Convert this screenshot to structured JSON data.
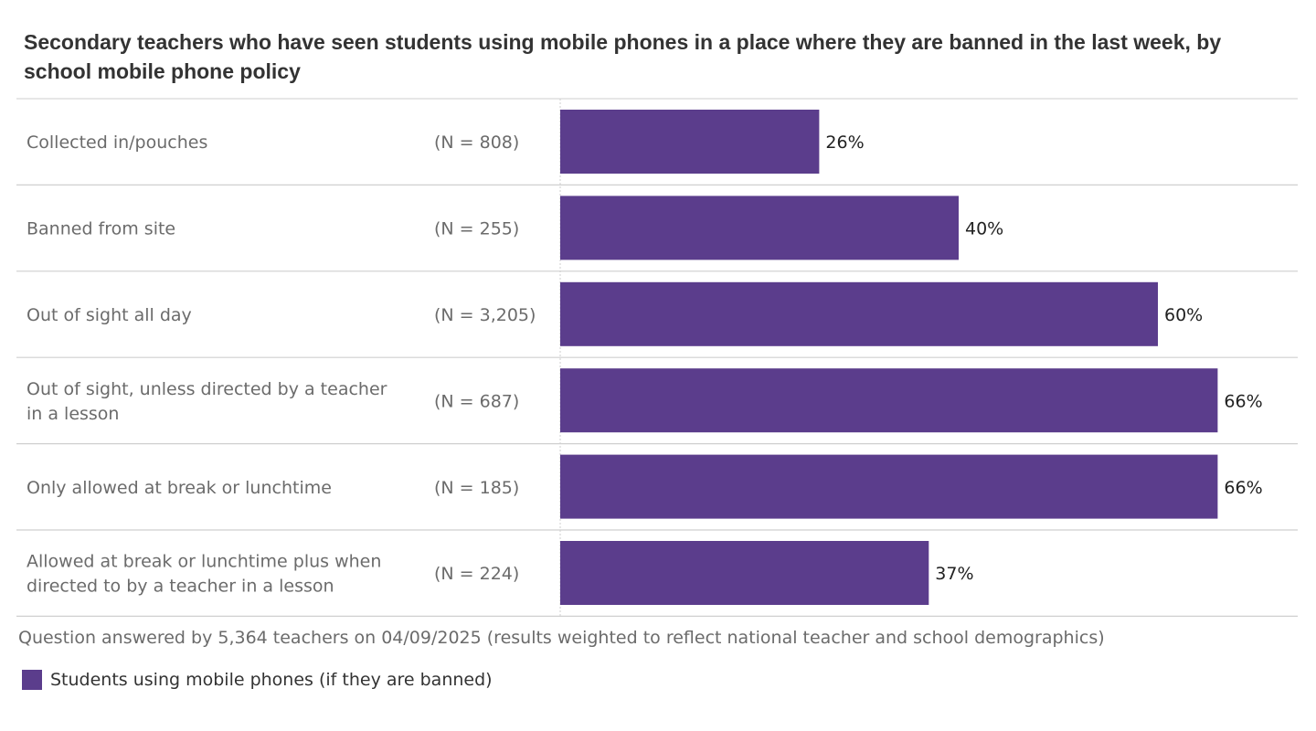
{
  "chart_data": {
    "type": "bar",
    "orientation": "horizontal",
    "title": "Secondary teachers who have seen students using mobile phones in a place  where they are banned in the last week, by school mobile phone policy",
    "categories": [
      "Collected in/pouches",
      "Banned from site",
      "Out of sight all day",
      "Out of sight, unless directed by a teacher in a lesson",
      "Only allowed at break or lunchtime",
      "Allowed at break or lunchtime plus when directed to by a teacher in a lesson"
    ],
    "sample_sizes": [
      "(N = 808)",
      "(N = 255)",
      "(N = 3,205)",
      "(N = 687)",
      "(N = 185)",
      "(N = 224)"
    ],
    "series": [
      {
        "name": "Students using mobile phones (if they are banned)",
        "values": [
          26,
          40,
          60,
          66,
          66,
          37
        ],
        "labels": [
          "26%",
          "40%",
          "60%",
          "66%",
          "66%",
          "37%"
        ],
        "color": "#5b3d8c"
      }
    ],
    "footnote": "Question answered by 5,364 teachers on 04/09/2025 (results weighted to reflect national teacher and school demographics)",
    "legend_position": "bottom-left",
    "grid": false
  }
}
